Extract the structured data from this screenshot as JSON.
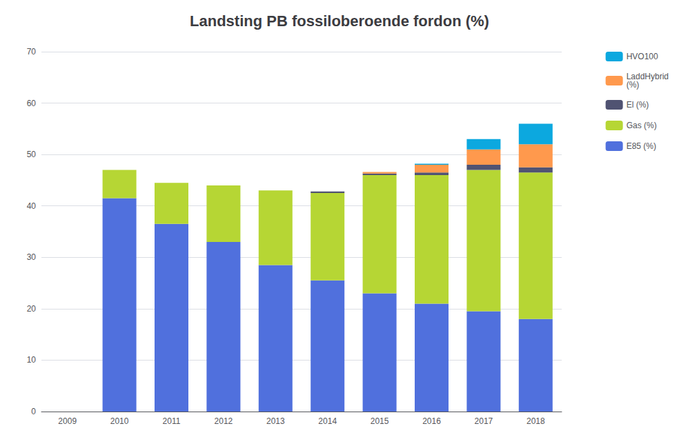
{
  "chart_data": {
    "type": "bar",
    "title": "Landsting PB fossiloberoende fordon (%)",
    "categories": [
      "2009",
      "2010",
      "2011",
      "2012",
      "2013",
      "2014",
      "2015",
      "2016",
      "2017",
      "2018"
    ],
    "series": [
      {
        "name": "E85 (%)",
        "values": [
          0,
          41.5,
          36.5,
          33.0,
          28.5,
          25.5,
          23.0,
          21.0,
          19.5,
          18.0
        ]
      },
      {
        "name": "Gas (%)",
        "values": [
          0,
          5.5,
          8.0,
          11.0,
          14.5,
          17.0,
          23.0,
          25.0,
          27.5,
          28.5
        ]
      },
      {
        "name": "El (%)",
        "values": [
          0,
          0.0,
          0.0,
          0.0,
          0.0,
          0.3,
          0.3,
          0.5,
          1.0,
          1.0
        ]
      },
      {
        "name": "LaddHybrid\n(%)",
        "values": [
          0,
          0.0,
          0.0,
          0.0,
          0.0,
          0.0,
          0.3,
          1.5,
          3.0,
          4.5
        ]
      },
      {
        "name": "HVO100",
        "values": [
          0,
          0.0,
          0.0,
          0.0,
          0.0,
          0.0,
          0.0,
          0.2,
          2.0,
          4.0
        ]
      }
    ],
    "stacked": true,
    "ylim": [
      0,
      70
    ],
    "yticks": [
      0,
      10,
      20,
      30,
      40,
      50,
      60,
      70
    ],
    "grid": true,
    "legend": "upper right"
  }
}
